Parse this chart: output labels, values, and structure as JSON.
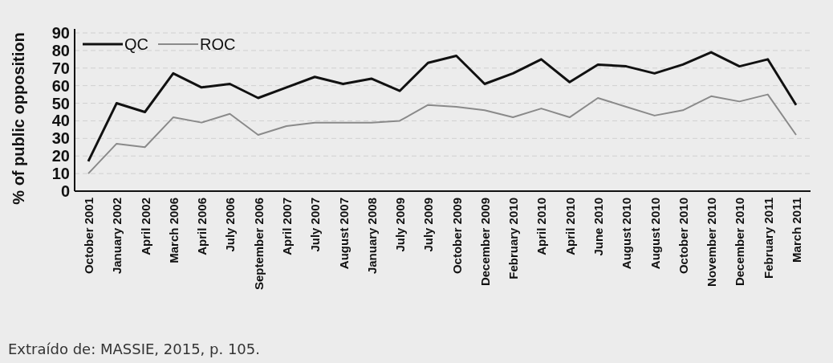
{
  "chart_data": {
    "type": "line",
    "ylabel": "% of public opposition",
    "categories": [
      "October 2001",
      "January 2002",
      "April 2002",
      "March 2006",
      "April 2006",
      "July 2006",
      "September 2006",
      "April 2007",
      "July 2007",
      "August 2007",
      "January 2008",
      "July 2009",
      "July 2009",
      "October 2009",
      "December 2009",
      "February 2010",
      "April 2010",
      "April 2010",
      "June 2010",
      "August 2010",
      "August 2010",
      "October 2010",
      "November 2010",
      "December 2010",
      "February 2011",
      "March 2011"
    ],
    "series": [
      {
        "name": "QC",
        "color": "#111111",
        "values": [
          17,
          50,
          45,
          67,
          59,
          61,
          53,
          59,
          65,
          61,
          64,
          57,
          73,
          77,
          61,
          67,
          75,
          62,
          72,
          71,
          67,
          72,
          79,
          71,
          75,
          49
        ]
      },
      {
        "name": "ROC",
        "color": "#8a8a8a",
        "values": [
          10,
          27,
          25,
          42,
          39,
          44,
          32,
          37,
          39,
          39,
          39,
          40,
          49,
          48,
          46,
          42,
          47,
          42,
          53,
          48,
          43,
          46,
          54,
          51,
          55,
          32
        ]
      }
    ],
    "ylim": [
      0,
      90
    ],
    "yticks": [
      0,
      10,
      20,
      30,
      40,
      50,
      60,
      70,
      80,
      90
    ],
    "grid": "y",
    "legend": "top left",
    "marker": "none",
    "line_style": "solid",
    "annotations": [
      "Extraído de: MASSIE, 2015, p. 105."
    ]
  }
}
